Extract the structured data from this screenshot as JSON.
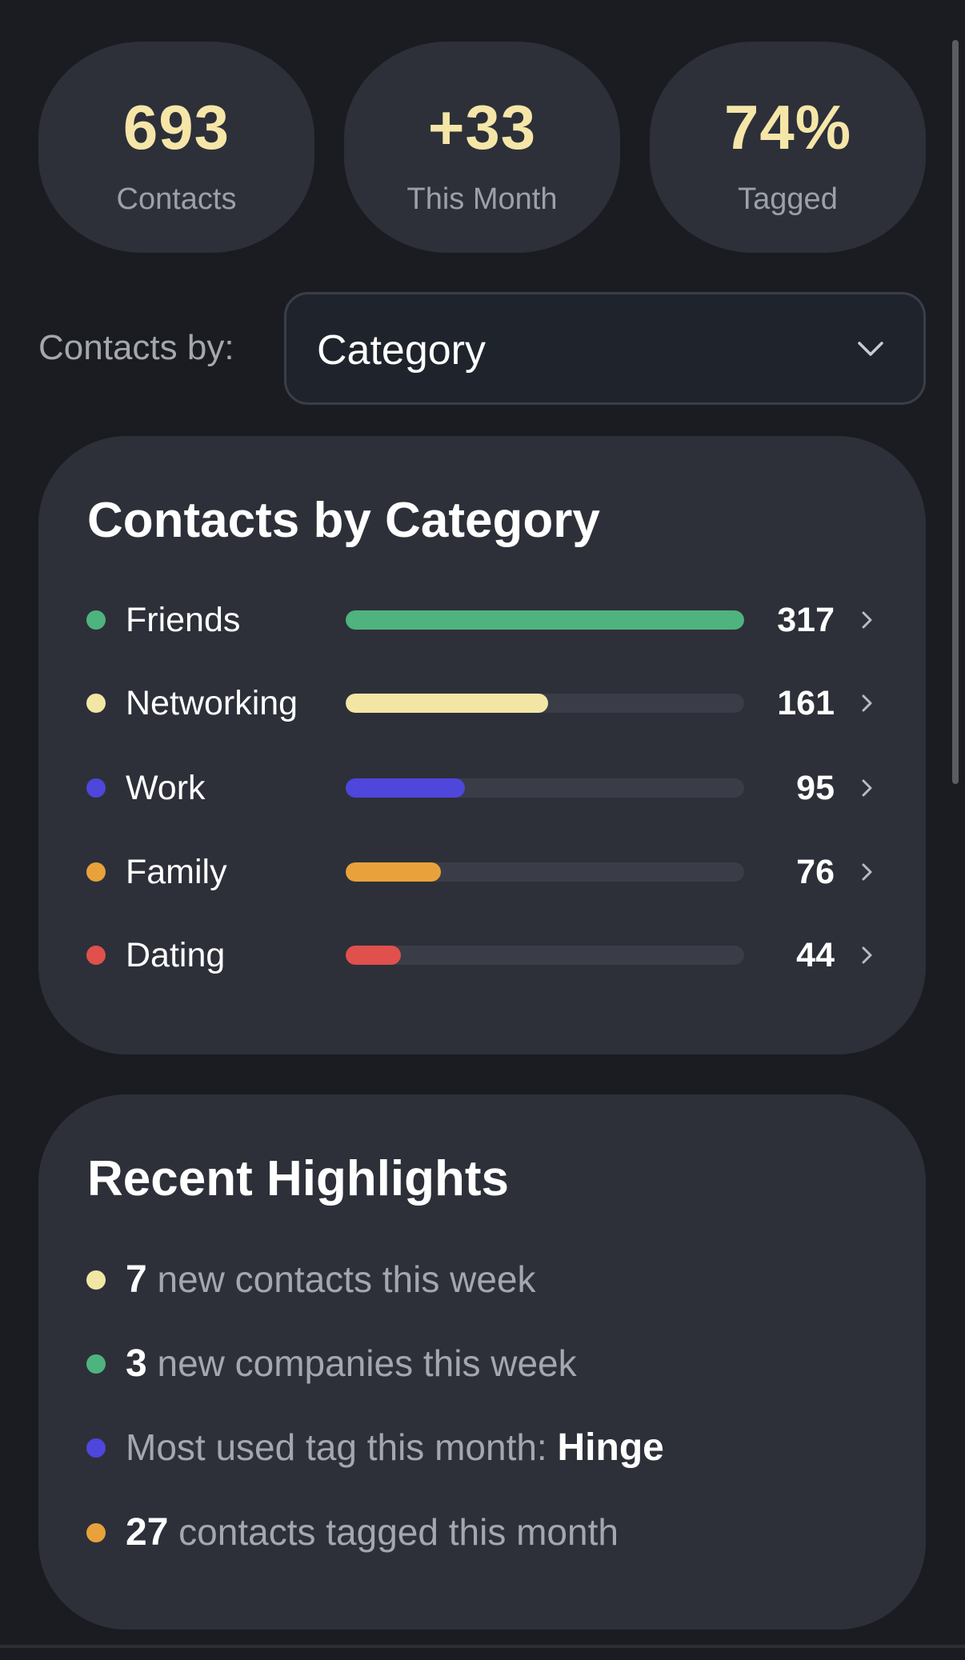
{
  "stats": [
    {
      "value": "693",
      "label": "Contacts"
    },
    {
      "value": "+33",
      "label": "This Month"
    },
    {
      "value": "74%",
      "label": "Tagged"
    }
  ],
  "filter": {
    "label": "Contacts by:",
    "selected": "Category",
    "icon": "chevron-down-icon"
  },
  "category_card": {
    "title": "Contacts by Category",
    "rows": [
      {
        "name": "Friends",
        "count": 317,
        "color": "#4fb37f"
      },
      {
        "name": "Networking",
        "count": 161,
        "color": "#f3e6a5"
      },
      {
        "name": "Work",
        "count": 95,
        "color": "#4f46dc"
      },
      {
        "name": "Family",
        "count": 76,
        "color": "#e9a23b"
      },
      {
        "name": "Dating",
        "count": 44,
        "color": "#e0504c"
      }
    ]
  },
  "highlights": {
    "title": "Recent Highlights",
    "items": [
      {
        "pre": "",
        "bold": "7",
        "post": " new contacts this week",
        "color": "#f3e6a5"
      },
      {
        "pre": "",
        "bold": "3",
        "post": " new companies this week",
        "color": "#4fb37f"
      },
      {
        "pre": "Most used tag this month: ",
        "bold": "Hinge",
        "post": "",
        "color": "#4f46dc"
      },
      {
        "pre": "",
        "bold": "27",
        "post": " contacts tagged this month",
        "color": "#e9a23b"
      }
    ]
  }
}
